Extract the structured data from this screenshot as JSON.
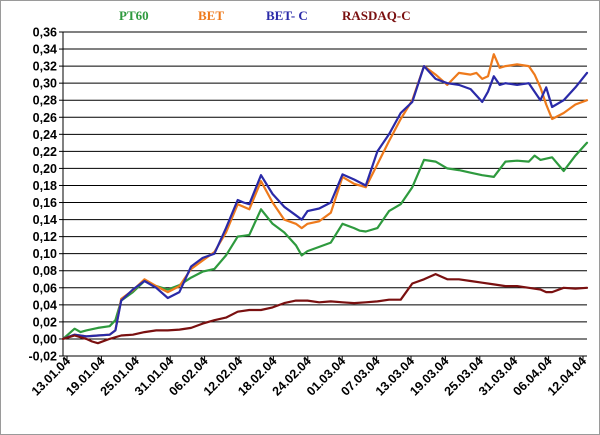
{
  "chart_data": {
    "type": "line",
    "title": "",
    "xlabel": "",
    "ylabel": "",
    "ylim": [
      -0.02,
      0.36
    ],
    "yticks": [
      "-0,02",
      "0,00",
      "0,02",
      "0,04",
      "0,06",
      "0,08",
      "0,10",
      "0,12",
      "0,14",
      "0,16",
      "0,18",
      "0,20",
      "0,22",
      "0,24",
      "0,26",
      "0,28",
      "0,30",
      "0,32",
      "0,34",
      "0,36"
    ],
    "categories": [
      "13.01.04",
      "19.01.04",
      "25.01.04",
      "31.01.04",
      "06.02.04",
      "12.02.04",
      "18.02.04",
      "24.02.04",
      "01.03.04",
      "07.03.04",
      "13.03.04",
      "19.03.04",
      "25.03.04",
      "31.03.04",
      "06.04.04",
      "12.04.04"
    ],
    "grid": "horizontal",
    "legend_position": "top",
    "series": [
      {
        "name": "PT60",
        "color": "#2e9a3e",
        "x": [
          0,
          2,
          3,
          4,
          6,
          8,
          9,
          10,
          12,
          14,
          16,
          18,
          20,
          22,
          24,
          26,
          27,
          28,
          30,
          31,
          32,
          34,
          36,
          38,
          40,
          41,
          42,
          44,
          46,
          48,
          50,
          51,
          52,
          54,
          56,
          58,
          60,
          62,
          64,
          66,
          68,
          70,
          72,
          74,
          76,
          78,
          80,
          81,
          82,
          84,
          86,
          88,
          90
        ],
        "values": [
          0.0,
          0.012,
          0.008,
          0.01,
          0.013,
          0.015,
          0.022,
          0.045,
          0.055,
          0.068,
          0.062,
          0.058,
          0.063,
          0.072,
          0.079,
          0.082,
          0.09,
          0.098,
          0.12,
          0.121,
          0.122,
          0.152,
          0.135,
          0.125,
          0.11,
          0.098,
          0.103,
          0.108,
          0.113,
          0.135,
          0.13,
          0.127,
          0.126,
          0.13,
          0.15,
          0.158,
          0.178,
          0.21,
          0.208,
          0.2,
          0.198,
          0.195,
          0.192,
          0.19,
          0.208,
          0.209,
          0.208,
          0.215,
          0.21,
          0.213,
          0.197,
          0.215,
          0.23
        ]
      },
      {
        "name": "BET",
        "color": "#ee7a1c",
        "x": [
          0,
          2,
          4,
          6,
          8,
          9,
          10,
          12,
          14,
          16,
          18,
          20,
          22,
          24,
          26,
          28,
          30,
          31,
          32,
          34,
          36,
          38,
          40,
          41,
          42,
          44,
          46,
          48,
          50,
          52,
          54,
          56,
          58,
          60,
          62,
          63,
          64,
          66,
          68,
          70,
          71,
          72,
          73,
          74,
          75,
          76,
          78,
          80,
          81,
          82,
          83,
          84,
          86,
          88,
          90
        ],
        "values": [
          0.0,
          0.005,
          0.003,
          0.004,
          0.005,
          0.01,
          0.047,
          0.057,
          0.07,
          0.062,
          0.055,
          0.062,
          0.082,
          0.092,
          0.102,
          0.125,
          0.158,
          0.155,
          0.152,
          0.185,
          0.16,
          0.14,
          0.135,
          0.13,
          0.135,
          0.138,
          0.148,
          0.19,
          0.182,
          0.178,
          0.205,
          0.232,
          0.258,
          0.28,
          0.32,
          0.315,
          0.31,
          0.298,
          0.312,
          0.31,
          0.312,
          0.305,
          0.308,
          0.334,
          0.318,
          0.32,
          0.322,
          0.32,
          0.31,
          0.295,
          0.275,
          0.258,
          0.265,
          0.275,
          0.28
        ]
      },
      {
        "name": "BET- C",
        "color": "#2a2aa8",
        "x": [
          0,
          2,
          4,
          6,
          8,
          9,
          10,
          12,
          14,
          16,
          18,
          20,
          22,
          24,
          26,
          28,
          30,
          31,
          32,
          34,
          36,
          38,
          40,
          41,
          42,
          44,
          46,
          48,
          50,
          52,
          54,
          56,
          58,
          60,
          62,
          64,
          66,
          68,
          70,
          72,
          73,
          74,
          75,
          76,
          78,
          80,
          81,
          82,
          83,
          84,
          86,
          88,
          90
        ],
        "values": [
          0.0,
          0.005,
          0.003,
          0.004,
          0.005,
          0.01,
          0.045,
          0.058,
          0.068,
          0.06,
          0.048,
          0.055,
          0.085,
          0.095,
          0.1,
          0.13,
          0.163,
          0.16,
          0.158,
          0.192,
          0.17,
          0.155,
          0.145,
          0.14,
          0.15,
          0.153,
          0.16,
          0.193,
          0.187,
          0.18,
          0.22,
          0.24,
          0.265,
          0.278,
          0.32,
          0.305,
          0.3,
          0.298,
          0.293,
          0.278,
          0.29,
          0.308,
          0.298,
          0.3,
          0.298,
          0.3,
          0.29,
          0.28,
          0.295,
          0.272,
          0.28,
          0.295,
          0.312
        ]
      },
      {
        "name": "RASDAQ-C",
        "color": "#7a1010",
        "x": [
          0,
          2,
          4,
          5,
          6,
          8,
          10,
          12,
          14,
          16,
          18,
          20,
          22,
          24,
          26,
          28,
          30,
          32,
          34,
          36,
          38,
          40,
          42,
          44,
          46,
          48,
          50,
          52,
          54,
          56,
          58,
          60,
          62,
          64,
          66,
          68,
          70,
          72,
          74,
          76,
          78,
          80,
          82,
          83,
          84,
          86,
          88,
          90
        ],
        "values": [
          0.0,
          0.004,
          0.0,
          -0.003,
          -0.005,
          0.0,
          0.004,
          0.005,
          0.008,
          0.01,
          0.01,
          0.011,
          0.013,
          0.018,
          0.022,
          0.025,
          0.032,
          0.034,
          0.034,
          0.037,
          0.042,
          0.045,
          0.045,
          0.043,
          0.044,
          0.043,
          0.042,
          0.043,
          0.044,
          0.046,
          0.046,
          0.065,
          0.07,
          0.076,
          0.07,
          0.07,
          0.068,
          0.066,
          0.064,
          0.062,
          0.062,
          0.06,
          0.058,
          0.055,
          0.055,
          0.06,
          0.059,
          0.06
        ]
      }
    ]
  }
}
